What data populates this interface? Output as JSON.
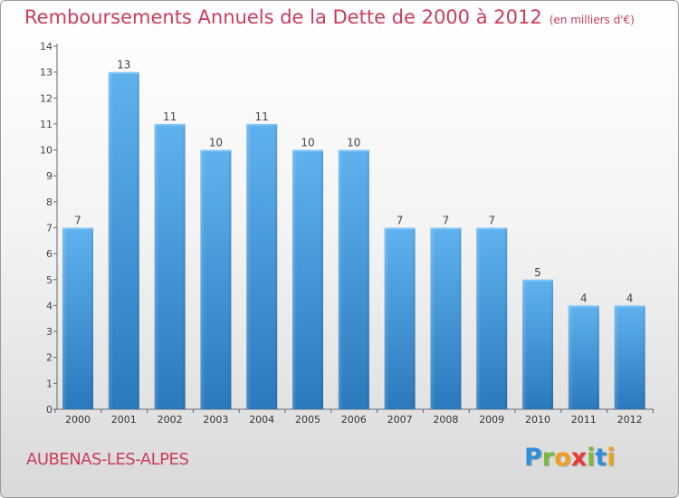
{
  "title": "Remboursements Annuels de la Dette de 2000 à 2012",
  "unit": "(en milliers d'€)",
  "commune": "AUBENAS-LES-ALPES",
  "brand": {
    "p": "P",
    "r": "r",
    "o": "o",
    "x": "x",
    "i1": "i",
    "t": "t",
    "i2": "i"
  },
  "colors": {
    "title": "#cc3c5a",
    "bar_top": "#5fb0ec",
    "bar_bottom": "#2b7bbf",
    "axis": "#555555"
  },
  "chart_data": {
    "type": "bar",
    "title": "Remboursements Annuels de la Dette de 2000 à 2012",
    "xlabel": "",
    "ylabel": "",
    "categories": [
      "2000",
      "2001",
      "2002",
      "2003",
      "2004",
      "2005",
      "2006",
      "2007",
      "2008",
      "2009",
      "2010",
      "2011",
      "2012"
    ],
    "values": [
      7,
      13,
      11,
      10,
      11,
      10,
      10,
      7,
      7,
      7,
      5,
      4,
      4
    ],
    "ylim": [
      0,
      14
    ],
    "yticks": [
      0,
      1,
      2,
      3,
      4,
      5,
      6,
      7,
      8,
      9,
      10,
      11,
      12,
      13,
      14
    ],
    "grid": false,
    "data_labels": true
  }
}
